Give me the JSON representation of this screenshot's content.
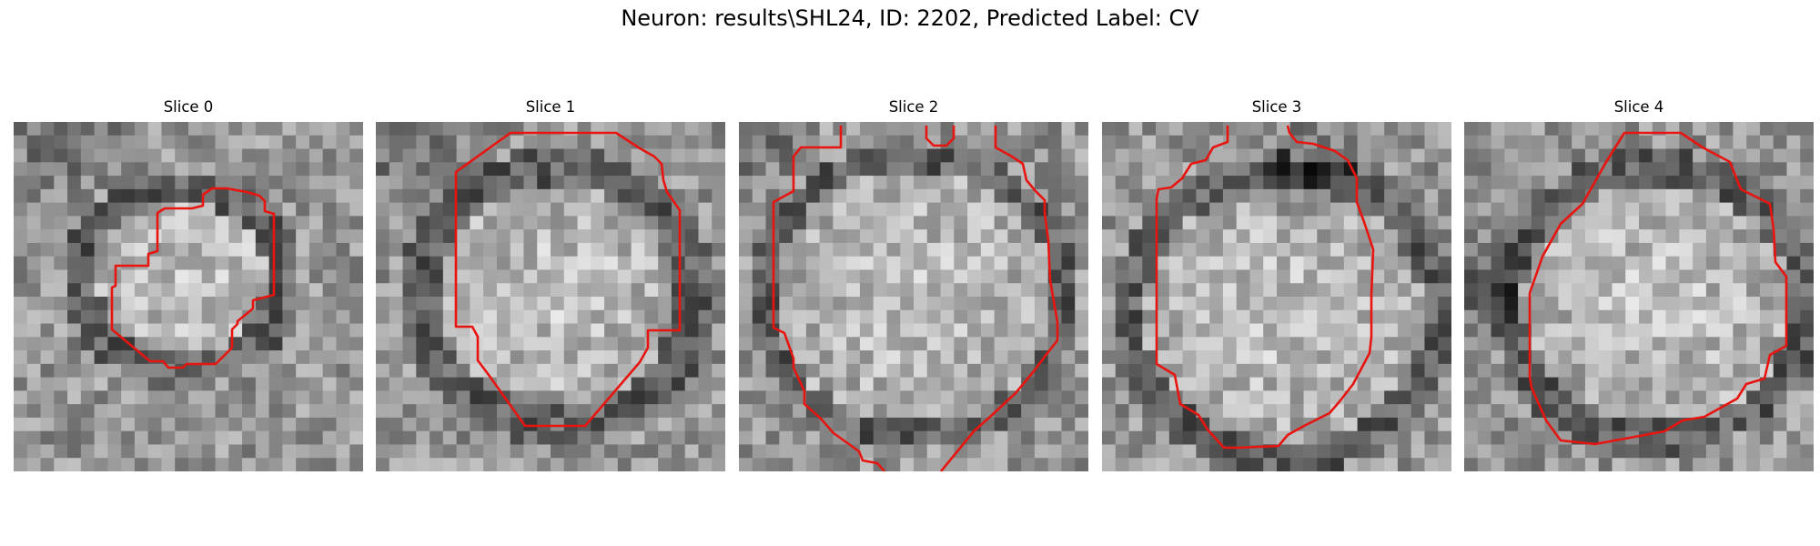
{
  "figure": {
    "title": "Neuron: results\\SHL24, ID: 2202, Predicted Label: CV"
  },
  "panels": [
    {
      "title": "Slice 0"
    },
    {
      "title": "Slice 1"
    },
    {
      "title": "Slice 2"
    },
    {
      "title": "Slice 3"
    },
    {
      "title": "Slice 4"
    }
  ],
  "colors": {
    "contour": "#e8140f"
  }
}
